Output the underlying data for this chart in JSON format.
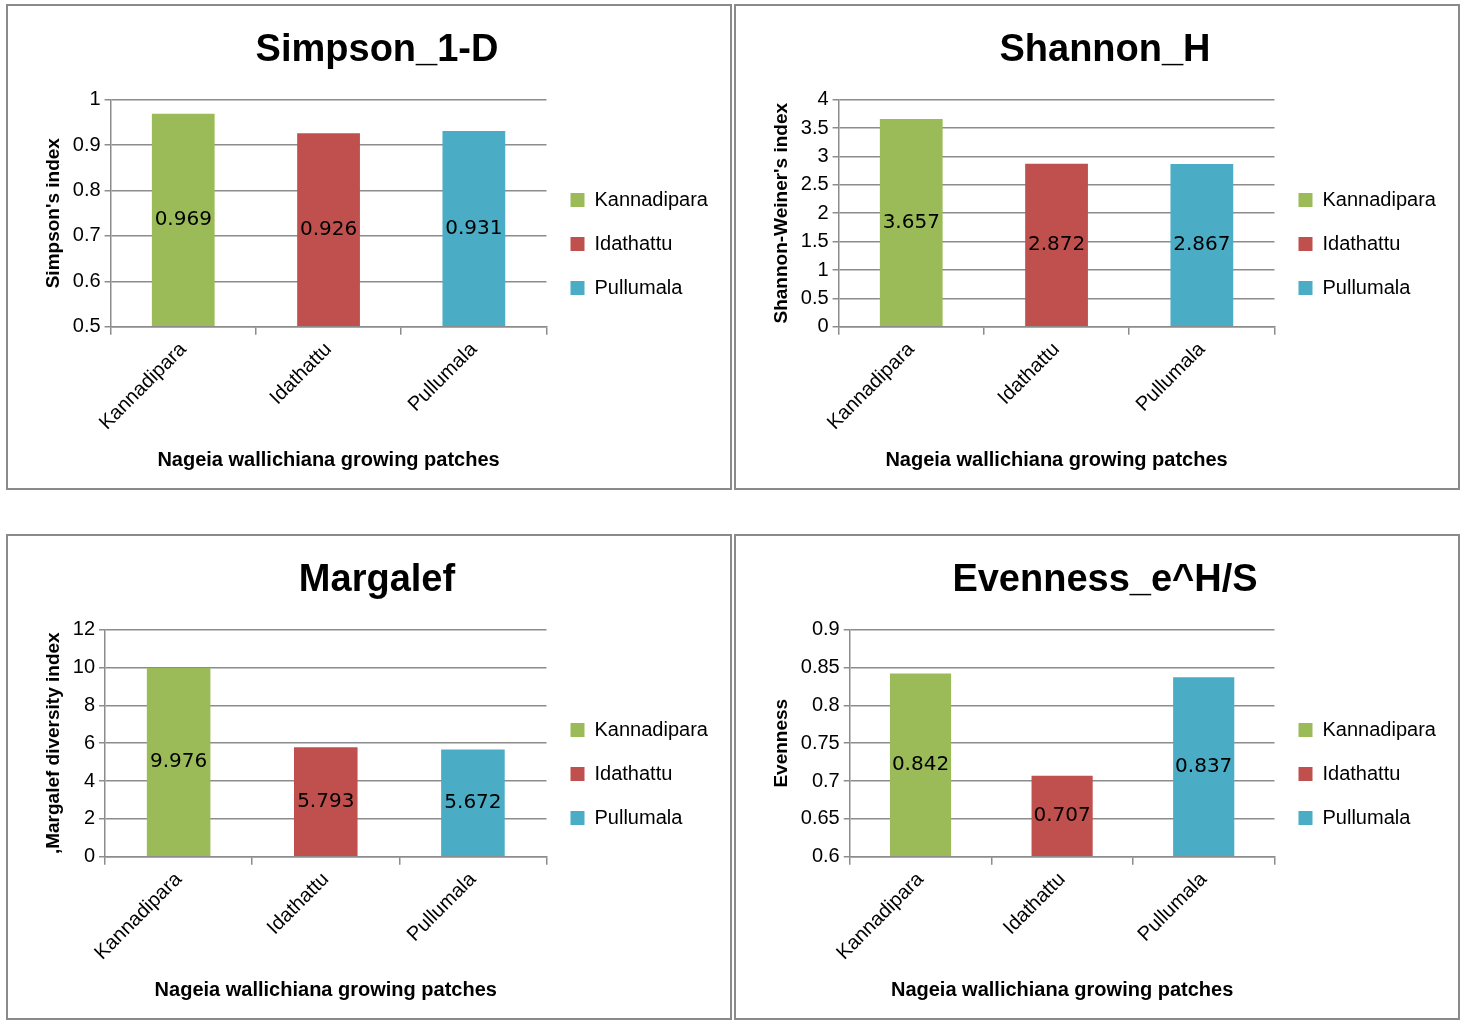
{
  "chart_data": [
    {
      "type": "bar",
      "title": "Simpson_1-D",
      "xlabel": "Nageia wallichiana growing patches",
      "ylabel": "Simpson's index",
      "categories": [
        "Kannadipara",
        "Idathattu",
        "Pullumala"
      ],
      "series": [
        {
          "name": "Kannadipara",
          "color": "#9bbb59",
          "values": [
            0.969,
            null,
            null
          ]
        },
        {
          "name": "Idathattu",
          "color": "#c0504d",
          "values": [
            null,
            0.926,
            null
          ]
        },
        {
          "name": "Pullumala",
          "color": "#4bacc6",
          "values": [
            null,
            null,
            0.931
          ]
        }
      ],
      "ylim": [
        0.5,
        1
      ],
      "yticks": [
        0.5,
        0.6,
        0.7,
        0.8,
        0.9,
        1
      ],
      "grid": "y",
      "legend": "right",
      "data_labels": true
    },
    {
      "type": "bar",
      "title": "Shannon_H",
      "xlabel": "Nageia wallichiana growing patches",
      "ylabel": "Shannon-Weiner's index",
      "categories": [
        "Kannadipara",
        "Idathattu",
        "Pullumala"
      ],
      "series": [
        {
          "name": "Kannadipara",
          "color": "#9bbb59",
          "values": [
            3.657,
            null,
            null
          ]
        },
        {
          "name": "Idathattu",
          "color": "#c0504d",
          "values": [
            null,
            2.872,
            null
          ]
        },
        {
          "name": "Pullumala",
          "color": "#4bacc6",
          "values": [
            null,
            null,
            2.867
          ]
        }
      ],
      "ylim": [
        0,
        4
      ],
      "yticks": [
        0,
        0.5,
        1,
        1.5,
        2,
        2.5,
        3,
        3.5,
        4
      ],
      "grid": "y",
      "legend": "right",
      "data_labels": true
    },
    {
      "type": "bar",
      "title": "Margalef",
      "xlabel": "Nageia wallichiana growing patches",
      "ylabel": ",Margalef diversity index",
      "categories": [
        "Kannadipara",
        "Idathattu",
        "Pullumala"
      ],
      "series": [
        {
          "name": "Kannadipara",
          "color": "#9bbb59",
          "values": [
            9.976,
            null,
            null
          ]
        },
        {
          "name": "Idathattu",
          "color": "#c0504d",
          "values": [
            null,
            5.793,
            null
          ]
        },
        {
          "name": "Pullumala",
          "color": "#4bacc6",
          "values": [
            null,
            null,
            5.672
          ]
        }
      ],
      "ylim": [
        0,
        12
      ],
      "yticks": [
        0,
        2,
        4,
        6,
        8,
        10,
        12
      ],
      "grid": "y",
      "legend": "right",
      "data_labels": true
    },
    {
      "type": "bar",
      "title": "Evenness_e^H/S",
      "xlabel": "Nageia wallichiana growing patches",
      "ylabel": "Evenness",
      "categories": [
        "Kannadipara",
        "Idathattu",
        "Pullumala"
      ],
      "series": [
        {
          "name": "Kannadipara",
          "color": "#9bbb59",
          "values": [
            0.842,
            null,
            null
          ]
        },
        {
          "name": "Idathattu",
          "color": "#c0504d",
          "values": [
            null,
            0.707,
            null
          ]
        },
        {
          "name": "Pullumala",
          "color": "#4bacc6",
          "values": [
            null,
            null,
            0.837
          ]
        }
      ],
      "ylim": [
        0.6,
        0.9
      ],
      "yticks": [
        0.6,
        0.65,
        0.7,
        0.75,
        0.8,
        0.85,
        0.9
      ],
      "grid": "y",
      "legend": "right",
      "data_labels": true
    }
  ]
}
